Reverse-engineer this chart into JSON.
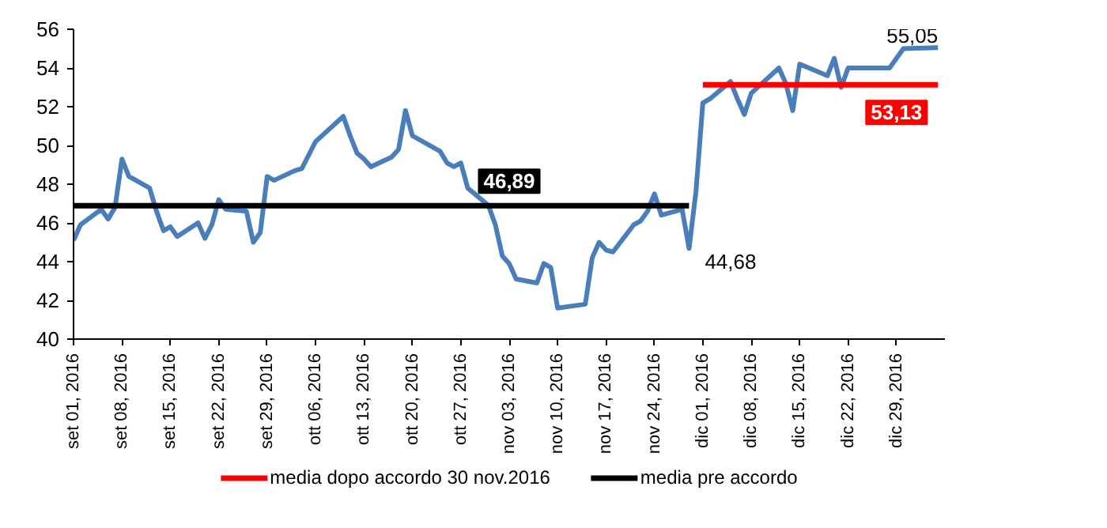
{
  "chart_data": {
    "type": "line",
    "x": [
      "2016-09-01",
      "2016-09-02",
      "2016-09-05",
      "2016-09-06",
      "2016-09-07",
      "2016-09-08",
      "2016-09-09",
      "2016-09-12",
      "2016-09-13",
      "2016-09-14",
      "2016-09-15",
      "2016-09-16",
      "2016-09-19",
      "2016-09-20",
      "2016-09-21",
      "2016-09-22",
      "2016-09-23",
      "2016-09-26",
      "2016-09-27",
      "2016-09-28",
      "2016-09-29",
      "2016-09-30",
      "2016-10-03",
      "2016-10-04",
      "2016-10-05",
      "2016-10-06",
      "2016-10-10",
      "2016-10-11",
      "2016-10-12",
      "2016-10-13",
      "2016-10-14",
      "2016-10-17",
      "2016-10-18",
      "2016-10-19",
      "2016-10-20",
      "2016-10-24",
      "2016-10-25",
      "2016-10-26",
      "2016-10-27",
      "2016-10-28",
      "2016-10-31",
      "2016-11-01",
      "2016-11-02",
      "2016-11-03",
      "2016-11-04",
      "2016-11-07",
      "2016-11-08",
      "2016-11-09",
      "2016-11-10",
      "2016-11-14",
      "2016-11-15",
      "2016-11-16",
      "2016-11-17",
      "2016-11-18",
      "2016-11-21",
      "2016-11-22",
      "2016-11-23",
      "2016-11-24",
      "2016-11-25",
      "2016-11-28",
      "2016-11-29",
      "2016-11-30",
      "2016-12-01",
      "2016-12-02",
      "2016-12-05",
      "2016-12-06",
      "2016-12-07",
      "2016-12-08",
      "2016-12-12",
      "2016-12-13",
      "2016-12-14",
      "2016-12-15",
      "2016-12-19",
      "2016-12-20",
      "2016-12-21",
      "2016-12-22",
      "2016-12-28",
      "2016-12-30",
      "2017-01-04"
    ],
    "series": [
      {
        "color": "#4a7ebb",
        "values": [
          45.1,
          45.9,
          46.7,
          46.2,
          46.8,
          49.3,
          48.4,
          47.8,
          46.6,
          45.6,
          45.8,
          45.3,
          46.0,
          45.2,
          45.9,
          47.2,
          46.7,
          46.6,
          45.0,
          45.5,
          48.4,
          48.2,
          48.7,
          48.8,
          49.5,
          50.2,
          51.5,
          50.5,
          49.6,
          49.3,
          48.9,
          49.4,
          49.8,
          51.8,
          50.5,
          49.7,
          49.1,
          48.9,
          49.1,
          47.8,
          46.9,
          45.9,
          44.3,
          43.9,
          43.1,
          42.9,
          43.9,
          43.7,
          41.6,
          41.8,
          44.2,
          45.0,
          44.6,
          44.5,
          45.9,
          46.1,
          46.6,
          47.5,
          46.4,
          46.7,
          44.68,
          47.6,
          52.2,
          52.4,
          53.3,
          52.4,
          51.6,
          52.7,
          54.0,
          53.2,
          51.8,
          54.2,
          53.6,
          54.5,
          53.0,
          54.0,
          54.0,
          55.0,
          55.05
        ]
      },
      {
        "name": "media dopo accordo 30 nov.2016",
        "color": "#ff0000",
        "x": [
          "2016-12-01",
          "2017-01-04"
        ],
        "values": [
          53.13,
          53.13
        ]
      },
      {
        "name": "media pre accordo",
        "color": "#000000",
        "x": [
          "2016-09-01",
          "2016-11-29"
        ],
        "values": [
          46.89,
          46.89
        ]
      }
    ],
    "annotations": [
      {
        "text": "46,89",
        "x": "2016-11-03",
        "y": 46.89
      },
      {
        "text": "53,13",
        "x": "2016-12-29",
        "y": 53.13
      },
      {
        "text": "44,68",
        "x": "2016-11-29",
        "y": 44.68
      },
      {
        "text": "55,05",
        "x": "2017-01-04",
        "y": 55.05
      }
    ],
    "xlim": [
      "2016-09-01",
      "2017-01-05"
    ],
    "xticks": [
      {
        "value": "2016-09-01",
        "label": "set 01, 2016"
      },
      {
        "value": "2016-09-08",
        "label": "set 08, 2016"
      },
      {
        "value": "2016-09-15",
        "label": "set 15, 2016"
      },
      {
        "value": "2016-09-22",
        "label": "set 22, 2016"
      },
      {
        "value": "2016-09-29",
        "label": "set 29, 2016"
      },
      {
        "value": "2016-10-06",
        "label": "ott 06, 2016"
      },
      {
        "value": "2016-10-13",
        "label": "ott 13, 2016"
      },
      {
        "value": "2016-10-20",
        "label": "ott 20, 2016"
      },
      {
        "value": "2016-10-27",
        "label": "ott 27, 2016"
      },
      {
        "value": "2016-11-03",
        "label": "nov 03, 2016"
      },
      {
        "value": "2016-11-10",
        "label": "nov 10, 2016"
      },
      {
        "value": "2016-11-17",
        "label": "nov 17, 2016"
      },
      {
        "value": "2016-11-24",
        "label": "nov 24, 2016"
      },
      {
        "value": "2016-12-01",
        "label": "dic 01, 2016"
      },
      {
        "value": "2016-12-08",
        "label": "dic 08, 2016"
      },
      {
        "value": "2016-12-15",
        "label": "dic 15, 2016"
      },
      {
        "value": "2016-12-22",
        "label": "dic 22, 2016"
      },
      {
        "value": "2016-12-29",
        "label": "dic 29, 2016"
      }
    ],
    "ylim": [
      40,
      56
    ],
    "yticks": [
      40,
      42,
      44,
      46,
      48,
      50,
      52,
      54,
      56
    ],
    "grid": false,
    "legend": "bottom",
    "marker": "none",
    "line_style": "solid"
  }
}
